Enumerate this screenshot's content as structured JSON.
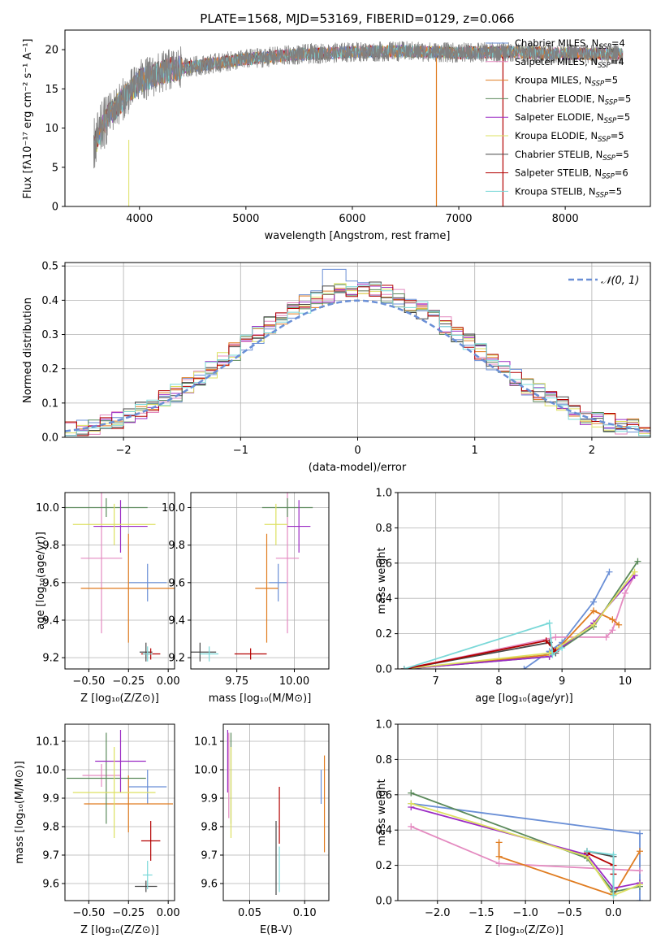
{
  "figure_title": "PLATE=1568, MJD=53169, FIBERID=0129, z=0.066",
  "colors": {
    "c1": "#6a8fd6",
    "c2": "#e48ac0",
    "c3": "#e07c20",
    "c4": "#5b8a5b",
    "c5": "#9b2bc4",
    "c6": "#dde060",
    "c7": "#474747",
    "c8": "#b30000",
    "c9": "#7ad8d8",
    "grid": "#b0b0b0",
    "data_gray": "#808080"
  },
  "spectrum": {
    "xlabel": "wavelength [Angstrom, rest frame]",
    "ylabel": "Flux [fλ10⁻¹⁷ erg cm⁻² s⁻¹ A⁻¹]",
    "xticks": [
      "4000",
      "5000",
      "6000",
      "7000",
      "8000"
    ],
    "yticks": [
      "0",
      "5",
      "10",
      "15",
      "20"
    ],
    "legend": [
      {
        "name": "Chabrier MILES",
        "n": "4",
        "color": "c1"
      },
      {
        "name": "Salpeter MILES",
        "n": "4",
        "color": "c2"
      },
      {
        "name": "Kroupa MILES",
        "n": "5",
        "color": "c3"
      },
      {
        "name": "Chabrier ELODIE",
        "n": "5",
        "color": "c4"
      },
      {
        "name": "Salpeter ELODIE",
        "n": "5",
        "color": "c5"
      },
      {
        "name": "Kroupa ELODIE",
        "n": "5",
        "color": "c6"
      },
      {
        "name": "Chabrier STELIB",
        "n": "5",
        "color": "c7"
      },
      {
        "name": "Salpeter STELIB",
        "n": "6",
        "color": "c8"
      },
      {
        "name": "Kroupa STELIB",
        "n": "5",
        "color": "c9"
      }
    ],
    "legend_prefix": "N",
    "legend_sub": "SSP"
  },
  "histogram": {
    "xlabel": "(data-model)/error",
    "ylabel": "Normed distribution",
    "xticks": [
      "−2",
      "−1",
      "0",
      "1",
      "2"
    ],
    "yticks": [
      "0.0",
      "0.1",
      "0.2",
      "0.3",
      "0.4",
      "0.5"
    ],
    "legend_label": "𝒩(0, 1)"
  },
  "panels": {
    "age_vs_z": {
      "xlabel": "Z [log₁₀(Z/Z⊙)]",
      "ylabel": "age  [log₁₀(age/yr)]",
      "xticks": [
        "−0.50",
        "−0.25",
        "0.00"
      ],
      "yticks": [
        "9.2",
        "9.4",
        "9.6",
        "9.8",
        "10.0"
      ]
    },
    "age_vs_mass": {
      "xlabel": "mass [log₁₀(M/M⊙)]",
      "xticks": [
        "9.75",
        "10.00"
      ],
      "yticks": [
        "9.2",
        "9.4",
        "9.6",
        "9.8",
        "10.0"
      ]
    },
    "mw_vs_age": {
      "xlabel": "age  [log₁₀(age/yr)]",
      "ylabel": "mass weight",
      "xticks": [
        "7",
        "8",
        "9",
        "10"
      ],
      "yticks": [
        "0.0",
        "0.2",
        "0.4",
        "0.6",
        "0.8",
        "1.0"
      ]
    },
    "mass_vs_z": {
      "xlabel": "Z [log₁₀(Z/Z⊙)]",
      "ylabel": "mass [log₁₀(M/M⊙)]",
      "xticks": [
        "−0.50",
        "−0.25",
        "0.00"
      ],
      "yticks": [
        "9.6",
        "9.7",
        "9.8",
        "9.9",
        "10.0",
        "10.1"
      ]
    },
    "mass_vs_ebv": {
      "xlabel": "E(B-V)",
      "xticks": [
        "0.05",
        "0.10"
      ],
      "yticks": [
        "9.6",
        "9.7",
        "9.8",
        "9.9",
        "10.0",
        "10.1"
      ]
    },
    "mw_vs_z": {
      "xlabel": "Z [log₁₀(Z/Z⊙)]",
      "ylabel": "mass weight",
      "xticks": [
        "−2.0",
        "−1.5",
        "−1.0",
        "−0.5",
        "0.0"
      ],
      "yticks": [
        "0.0",
        "0.2",
        "0.4",
        "0.6",
        "0.8",
        "1.0"
      ]
    }
  },
  "chart_data": [
    {
      "type": "line",
      "title": "PLATE=1568, MJD=53169, FIBERID=0129, z=0.066",
      "xlabel": "wavelength [Angstrom, rest frame]",
      "ylabel": "Flux [fλ10⁻¹⁷ erg cm⁻² s⁻¹ A⁻¹]",
      "xlim": [
        3300,
        8800
      ],
      "ylim": [
        0,
        22.5
      ],
      "data_trend": {
        "x": [
          3580,
          3700,
          4000,
          4300,
          5000,
          5500,
          6000,
          6500,
          7000,
          7500,
          8000,
          8500
        ],
        "y": [
          8,
          11.5,
          16,
          17.5,
          18.8,
          19.4,
          19.7,
          19.8,
          19.6,
          19.7,
          19.5,
          19.4
        ]
      },
      "series": [
        "Chabrier MILES",
        "Salpeter MILES",
        "Kroupa MILES",
        "Chabrier ELODIE",
        "Salpeter ELODIE",
        "Kroupa ELODIE",
        "Chabrier STELIB",
        "Salpeter STELIB",
        "Kroupa STELIB"
      ]
    },
    {
      "type": "bar",
      "title": "",
      "xlabel": "(data-model)/error",
      "ylabel": "Normed distribution",
      "xlim": [
        -2.5,
        2.5
      ],
      "ylim": [
        0,
        0.51
      ],
      "bin_width": 0.1,
      "gaussian": {
        "name": "𝒩(0, 1)",
        "mean": 0,
        "sigma": 1
      }
    },
    {
      "type": "scatter",
      "xlabel": "Z [log₁₀(Z/Z⊙)]",
      "ylabel": "age  [log₁₀(age/yr)]",
      "xlim": [
        -0.65,
        0.04
      ],
      "ylim": [
        9.14,
        10.08
      ],
      "points": [
        {
          "c": "c1",
          "x": -0.13,
          "y": 9.6,
          "xe": 0.12,
          "ye": 0.1
        },
        {
          "c": "c2",
          "x": -0.42,
          "y": 9.73,
          "xe": 0.13,
          "ye": 0.4
        },
        {
          "c": "c3",
          "x": -0.25,
          "y": 9.57,
          "xe": 0.3,
          "ye": 0.29
        },
        {
          "c": "c4",
          "x": -0.39,
          "y": 10.0,
          "xe": 0.26,
          "ye": 0.05
        },
        {
          "c": "c5",
          "x": -0.3,
          "y": 9.9,
          "xe": 0.17,
          "ye": 0.14
        },
        {
          "c": "c6",
          "x": -0.34,
          "y": 9.91,
          "xe": 0.26,
          "ye": 0.11
        },
        {
          "c": "c7",
          "x": -0.14,
          "y": 9.23,
          "xe": 0.04,
          "ye": 0.05
        },
        {
          "c": "c8",
          "x": -0.11,
          "y": 9.22,
          "xe": 0.06,
          "ye": 0.03
        },
        {
          "c": "c9",
          "x": -0.13,
          "y": 9.22,
          "xe": 0.03,
          "ye": 0.04
        }
      ]
    },
    {
      "type": "scatter",
      "xlabel": "mass [log₁₀(M/M⊙)]",
      "ylabel": "",
      "xlim": [
        9.55,
        10.15
      ],
      "ylim": [
        9.14,
        10.08
      ],
      "points": [
        {
          "c": "c1",
          "x": 9.93,
          "y": 9.6,
          "xe": 0.04,
          "ye": 0.1
        },
        {
          "c": "c2",
          "x": 9.97,
          "y": 9.73,
          "xe": 0.05,
          "ye": 0.4
        },
        {
          "c": "c3",
          "x": 9.88,
          "y": 9.57,
          "xe": 0.05,
          "ye": 0.29
        },
        {
          "c": "c4",
          "x": 9.97,
          "y": 10.0,
          "xe": 0.11,
          "ye": 0.05
        },
        {
          "c": "c5",
          "x": 10.02,
          "y": 9.9,
          "xe": 0.05,
          "ye": 0.14
        },
        {
          "c": "c6",
          "x": 9.92,
          "y": 9.91,
          "xe": 0.05,
          "ye": 0.11
        },
        {
          "c": "c7",
          "x": 9.59,
          "y": 9.23,
          "xe": 0.07,
          "ye": 0.05
        },
        {
          "c": "c8",
          "x": 9.81,
          "y": 9.22,
          "xe": 0.07,
          "ye": 0.03
        },
        {
          "c": "c9",
          "x": 9.63,
          "y": 9.22,
          "xe": 0.04,
          "ye": 0.04
        }
      ]
    },
    {
      "type": "line",
      "xlabel": "age  [log₁₀(age/yr)]",
      "ylabel": "mass weight",
      "xlim": [
        6.4,
        10.4
      ],
      "ylim": [
        0,
        1
      ],
      "series": [
        {
          "c": "c1",
          "x": [
            8.4,
            8.8,
            9.0,
            9.5,
            9.75
          ],
          "y": [
            0.0,
            0.1,
            0.15,
            0.38,
            0.55
          ]
        },
        {
          "c": "c2",
          "x": [
            6.5,
            8.9,
            9.7,
            9.8,
            10.0,
            10.15
          ],
          "y": [
            0.0,
            0.18,
            0.18,
            0.22,
            0.43,
            0.53
          ]
        },
        {
          "c": "c3",
          "x": [
            6.5,
            8.8,
            8.95,
            9.5,
            9.8,
            9.9
          ],
          "y": [
            0.0,
            0.08,
            0.12,
            0.33,
            0.28,
            0.25
          ]
        },
        {
          "c": "c4",
          "x": [
            6.5,
            8.8,
            9.5,
            10.2
          ],
          "y": [
            0.0,
            0.07,
            0.24,
            0.61
          ]
        },
        {
          "c": "c5",
          "x": [
            6.5,
            8.8,
            9.5,
            10.15
          ],
          "y": [
            0.0,
            0.07,
            0.26,
            0.53
          ]
        },
        {
          "c": "c6",
          "x": [
            6.5,
            8.8,
            9.5,
            10.15
          ],
          "y": [
            0.0,
            0.09,
            0.25,
            0.55
          ]
        },
        {
          "c": "c7",
          "x": [
            6.5,
            8.8,
            8.9
          ],
          "y": [
            0.0,
            0.15,
            0.09
          ]
        },
        {
          "c": "c8",
          "x": [
            6.5,
            8.75,
            8.9
          ],
          "y": [
            0.0,
            0.16,
            0.1
          ]
        },
        {
          "c": "c9",
          "x": [
            6.5,
            8.8,
            8.85,
            9.0
          ],
          "y": [
            0.0,
            0.26,
            0.08,
            0.12
          ]
        }
      ]
    },
    {
      "type": "scatter",
      "xlabel": "Z [log₁₀(Z/Z⊙)]",
      "ylabel": "mass [log₁₀(M/M⊙)]",
      "xlim": [
        -0.65,
        0.04
      ],
      "ylim": [
        9.54,
        10.16
      ],
      "points": [
        {
          "c": "c1",
          "x": -0.13,
          "y": 9.94,
          "xe": 0.12,
          "ye": 0.06
        },
        {
          "c": "c2",
          "x": -0.42,
          "y": 9.98,
          "xe": 0.12,
          "ye": 0.04
        },
        {
          "c": "c3",
          "x": -0.25,
          "y": 9.88,
          "xe": 0.28,
          "ye": 0.1
        },
        {
          "c": "c4",
          "x": -0.39,
          "y": 9.97,
          "xe": 0.25,
          "ye": 0.16
        },
        {
          "c": "c5",
          "x": -0.3,
          "y": 10.03,
          "xe": 0.16,
          "ye": 0.11
        },
        {
          "c": "c6",
          "x": -0.34,
          "y": 9.92,
          "xe": 0.26,
          "ye": 0.16
        },
        {
          "c": "c7",
          "x": -0.14,
          "y": 9.59,
          "xe": 0.07,
          "ye": 0.02
        },
        {
          "c": "c8",
          "x": -0.11,
          "y": 9.75,
          "xe": 0.06,
          "ye": 0.07
        },
        {
          "c": "c9",
          "x": -0.13,
          "y": 9.63,
          "xe": 0.03,
          "ye": 0.05
        }
      ]
    },
    {
      "type": "scatter",
      "xlabel": "E(B-V)",
      "ylabel": "",
      "xlim": [
        0.026,
        0.122
      ],
      "ylim": [
        9.54,
        10.16
      ],
      "points": [
        {
          "c": "c1",
          "x": 0.115,
          "y": 9.94,
          "ye": 0.06
        },
        {
          "c": "c2",
          "x": 0.031,
          "y": 9.98,
          "ye": 0.15
        },
        {
          "c": "c3",
          "x": 0.118,
          "y": 9.88,
          "ye": 0.17
        },
        {
          "c": "c4",
          "x": 0.033,
          "y": 9.97,
          "ye": 0.16
        },
        {
          "c": "c5",
          "x": 0.03,
          "y": 10.03,
          "ye": 0.11
        },
        {
          "c": "c6",
          "x": 0.033,
          "y": 9.92,
          "ye": 0.16
        },
        {
          "c": "c7",
          "x": 0.074,
          "y": 9.69,
          "ye": 0.13
        },
        {
          "c": "c8",
          "x": 0.077,
          "y": 9.84,
          "ye": 0.1
        },
        {
          "c": "c9",
          "x": 0.077,
          "y": 9.65,
          "ye": 0.08
        }
      ]
    },
    {
      "type": "line",
      "xlabel": "Z [log₁₀(Z/Z⊙)]",
      "ylabel": "mass weight",
      "xlim": [
        -2.45,
        0.42
      ],
      "ylim": [
        0,
        1
      ],
      "series": [
        {
          "c": "c1",
          "x": [
            -2.3,
            0.3,
            0.3
          ],
          "y": [
            0.55,
            0.38,
            0.0
          ]
        },
        {
          "c": "c2",
          "x": [
            -2.3,
            -1.3,
            0.3
          ],
          "y": [
            0.42,
            0.21,
            0.17
          ]
        },
        {
          "c": "c3",
          "x": [
            -1.3,
            -1.3,
            0.0,
            0.3
          ],
          "y": [
            0.33,
            0.25,
            0.03,
            0.28
          ]
        },
        {
          "c": "c4",
          "x": [
            -2.3,
            -0.3,
            0.0,
            0.3
          ],
          "y": [
            0.61,
            0.24,
            0.05,
            0.08
          ]
        },
        {
          "c": "c5",
          "x": [
            -2.3,
            -0.3,
            0.0,
            0.3
          ],
          "y": [
            0.53,
            0.26,
            0.07,
            0.1
          ]
        },
        {
          "c": "c6",
          "x": [
            -2.3,
            -0.3,
            0.0,
            0.3
          ],
          "y": [
            0.55,
            0.25,
            0.03,
            0.09
          ]
        },
        {
          "c": "c7",
          "x": [
            -0.3,
            0.0,
            0.0
          ],
          "y": [
            0.28,
            0.25,
            0.05
          ]
        },
        {
          "c": "c8",
          "x": [
            -0.3,
            0.0,
            0.0
          ],
          "y": [
            0.27,
            0.2,
            0.15
          ]
        },
        {
          "c": "c9",
          "x": [
            -0.3,
            0.0,
            0.0
          ],
          "y": [
            0.28,
            0.26,
            0.03
          ]
        }
      ]
    }
  ]
}
